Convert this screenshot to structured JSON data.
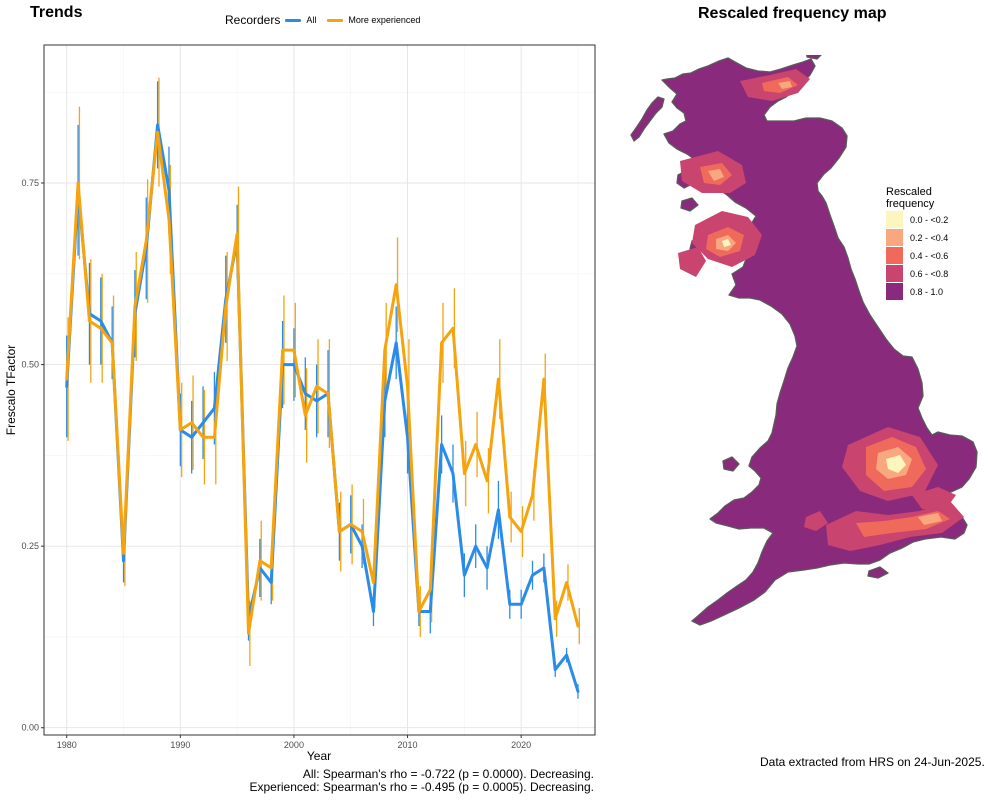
{
  "left_panel": {
    "title": "Trends",
    "legend_title": "Recorders",
    "stats": {
      "all": "All: Spearman's rho = -0.722 (p = 0.0000). Decreasing.",
      "experienced": "Experienced: Spearman's rho = -0.495 (p = 0.0005). Decreasing."
    }
  },
  "right_panel": {
    "title": "Rescaled frequency map",
    "legend": {
      "title_line1": "Rescaled",
      "title_line2": "frequency",
      "bins": [
        {
          "label": "0.0 - <0.2",
          "color": "#FCF5BE"
        },
        {
          "label": "0.2 - <0.4",
          "color": "#F9A77F"
        },
        {
          "label": "0.4 - <0.6",
          "color": "#F06A5C"
        },
        {
          "label": "0.6 - <0.8",
          "color": "#C9446F"
        },
        {
          "label": "0.8 - 1.0",
          "color": "#8A2A7C"
        }
      ]
    },
    "outline_color": "#5A5A5A",
    "data_note": "Data extracted from HRS on 24-Jun-2025."
  },
  "chart_data": {
    "type": "line",
    "title": "Trends",
    "xlabel": "Year",
    "ylabel": "Frescalo TFactor",
    "xlim": [
      1978.0,
      2026.5
    ],
    "ylim": [
      -0.01,
      0.94
    ],
    "xticks": [
      1980,
      1990,
      2000,
      2010,
      2020
    ],
    "yticks": [
      0.0,
      0.25,
      0.5,
      0.75
    ],
    "ytick_labels": [
      "0.00",
      "0.25",
      "0.50",
      "0.75"
    ],
    "grid": true,
    "legend_position": "top",
    "x": [
      1980,
      1981,
      1982,
      1983,
      1984,
      1985,
      1986,
      1987,
      1988,
      1989,
      1990,
      1991,
      1992,
      1993,
      1994,
      1995,
      1996,
      1997,
      1998,
      1999,
      2000,
      2001,
      2002,
      2003,
      2004,
      2005,
      2006,
      2007,
      2008,
      2009,
      2010,
      2011,
      2012,
      2013,
      2014,
      2015,
      2016,
      2017,
      2018,
      2019,
      2020,
      2021,
      2022,
      2023,
      2024,
      2025
    ],
    "series": [
      {
        "name": "All",
        "color": "#2B8CE8",
        "values": [
          0.47,
          0.74,
          0.57,
          0.56,
          0.53,
          0.23,
          0.57,
          0.66,
          0.83,
          0.74,
          0.41,
          0.4,
          0.42,
          0.44,
          0.59,
          0.67,
          0.15,
          0.22,
          0.2,
          0.5,
          0.5,
          0.46,
          0.45,
          0.46,
          0.27,
          0.28,
          0.25,
          0.16,
          0.45,
          0.53,
          0.4,
          0.16,
          0.16,
          0.39,
          0.35,
          0.21,
          0.25,
          0.22,
          0.3,
          0.17,
          0.17,
          0.21,
          0.22,
          0.08,
          0.1,
          0.05
        ],
        "err": [
          0.07,
          0.09,
          0.07,
          0.06,
          0.05,
          0.03,
          0.06,
          0.07,
          0.06,
          0.06,
          0.05,
          0.05,
          0.05,
          0.05,
          0.06,
          0.05,
          0.03,
          0.04,
          0.03,
          0.06,
          0.05,
          0.05,
          0.05,
          0.06,
          0.04,
          0.04,
          0.03,
          0.02,
          0.05,
          0.05,
          0.05,
          0.02,
          0.03,
          0.04,
          0.04,
          0.03,
          0.03,
          0.03,
          0.04,
          0.02,
          0.02,
          0.02,
          0.02,
          0.01,
          0.01,
          0.01
        ]
      },
      {
        "name": "More experienced",
        "color": "#F5A410",
        "values": [
          0.48,
          0.75,
          0.56,
          0.55,
          0.53,
          0.24,
          0.58,
          0.67,
          0.82,
          0.7,
          0.41,
          0.42,
          0.4,
          0.4,
          0.58,
          0.68,
          0.13,
          0.23,
          0.22,
          0.52,
          0.52,
          0.43,
          0.47,
          0.46,
          0.27,
          0.28,
          0.27,
          0.2,
          0.52,
          0.61,
          0.47,
          0.16,
          0.19,
          0.53,
          0.55,
          0.35,
          0.39,
          0.34,
          0.48,
          0.29,
          0.27,
          0.32,
          0.48,
          0.15,
          0.2,
          0.14
        ]
      }
    ]
  }
}
